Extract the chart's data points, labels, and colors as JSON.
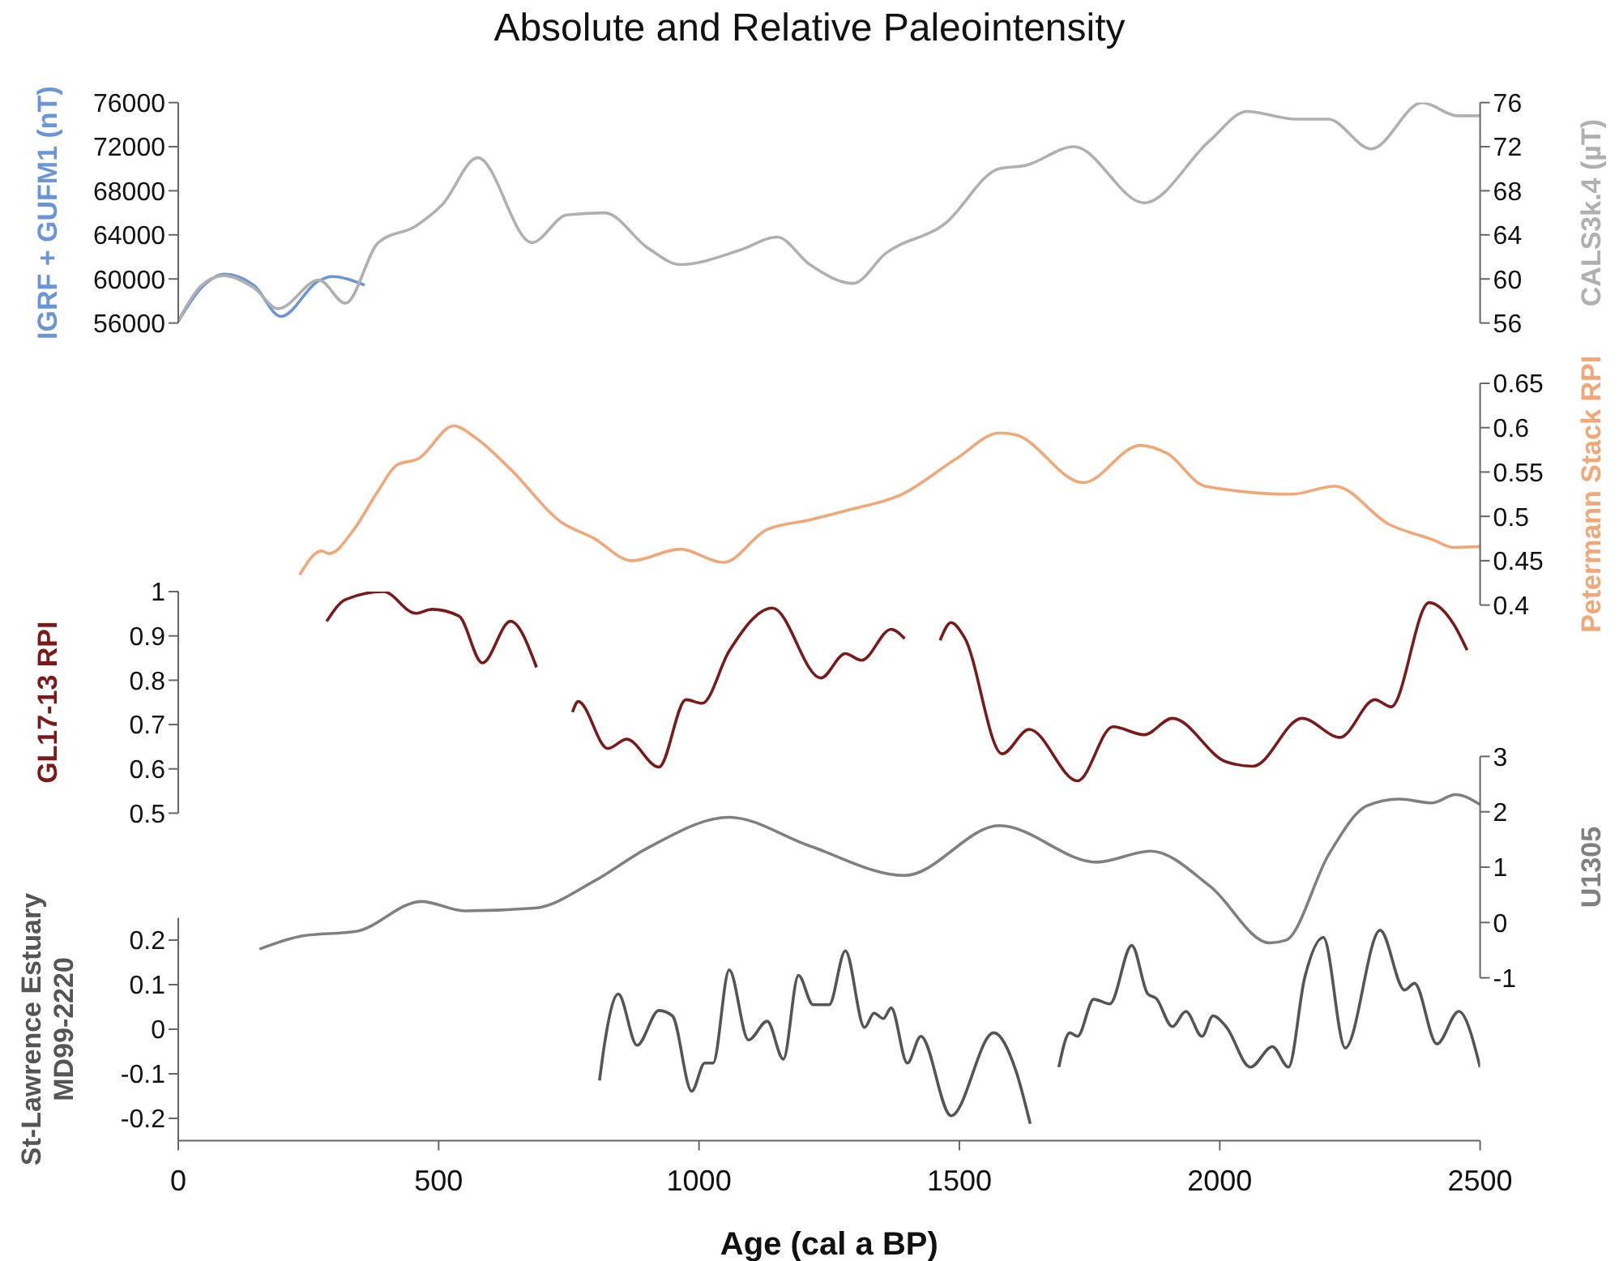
{
  "chart_data": [
    {
      "type": "line",
      "title": "Absolute and Relative Paleointensity",
      "ylabel": "IGRF + GUFM1 (nT)",
      "y2label": "CALS3k.4 (µT)",
      "xlim": [
        0,
        2500
      ],
      "ylim": [
        56000,
        76000
      ],
      "yticks": [
        56000,
        60000,
        64000,
        68000,
        72000,
        76000
      ],
      "y2lim": [
        56,
        76
      ],
      "y2ticks": [
        56,
        60,
        64,
        68,
        72,
        76
      ],
      "tick_labels": "y",
      "series": [
        {
          "color": "#6a96d8",
          "x": [
            0,
            47,
            88,
            145,
            197,
            270,
            295,
            358
          ],
          "values": [
            56150,
            59330,
            60430,
            59430,
            56600,
            59840,
            60220,
            59430
          ]
        },
        {
          "color": "#b0b0b0",
          "axis": "y2",
          "x": [
            0,
            47,
            88,
            145,
            192,
            270,
            321,
            384,
            456,
            508,
            575,
            679,
            746,
            819,
            902,
            964,
            1078,
            1150,
            1213,
            1296,
            1358,
            1472,
            1576,
            1627,
            1720,
            1855,
            1980,
            2052,
            2146,
            2208,
            2291,
            2389,
            2456,
            2500
          ],
          "values": [
            56.2,
            59.5,
            60.3,
            59.2,
            57.3,
            59.9,
            57.8,
            63.3,
            64.8,
            66.8,
            71.0,
            63.3,
            65.8,
            66.0,
            62.8,
            61.3,
            62.6,
            63.8,
            61.3,
            59.6,
            62.3,
            65.0,
            70.0,
            70.3,
            72.0,
            66.9,
            72.5,
            75.2,
            74.5,
            74.5,
            71.8,
            76.0,
            74.8,
            74.8
          ]
        }
      ]
    },
    {
      "type": "line",
      "y2label": "Petermann Stack RPI",
      "xlim": [
        0,
        2500
      ],
      "y2lim": [
        0.4,
        0.65
      ],
      "y2ticks": [
        0.4,
        0.45,
        0.5,
        0.55,
        0.6,
        0.65
      ],
      "tick_labels": "y",
      "series": [
        {
          "color": "#f0a878",
          "axis": "y2",
          "x": [
            233,
            275,
            290,
            337,
            383,
            420,
            461,
            529,
            570,
            640,
            734,
            796,
            871,
            964,
            1047,
            1130,
            1213,
            1286,
            1390,
            1494,
            1577,
            1608,
            1738,
            1847,
            1899,
            1972,
            2138,
            2221,
            2325,
            2408,
            2449,
            2500
          ],
          "values": [
            0.434,
            0.461,
            0.458,
            0.485,
            0.528,
            0.558,
            0.565,
            0.602,
            0.589,
            0.552,
            0.494,
            0.476,
            0.45,
            0.463,
            0.448,
            0.485,
            0.496,
            0.507,
            0.525,
            0.565,
            0.594,
            0.592,
            0.538,
            0.58,
            0.571,
            0.534,
            0.525,
            0.534,
            0.491,
            0.474,
            0.465,
            0.466
          ]
        }
      ]
    },
    {
      "type": "line",
      "ylabel": "GL17-13 RPI",
      "xlim": [
        0,
        2500
      ],
      "ylim": [
        0.5,
        1
      ],
      "yticks": [
        0.5,
        0.6,
        0.7,
        0.8,
        0.9,
        1
      ],
      "tick_labels": "y",
      "series": [
        {
          "color": "#7a1a1a",
          "x": [
            285,
            321,
            394,
            456,
            487,
            539,
            584,
            638,
            688,
            720,
            757,
            768,
            825,
            861,
            923,
            975,
            1006,
            1058,
            1141,
            1234,
            1281,
            1312,
            1369,
            1395,
            1430,
            1463,
            1484,
            1510,
            1582,
            1634,
            1727,
            1795,
            1855,
            1909,
            2012,
            2064,
            2158,
            2231,
            2298,
            2329,
            2402,
            2449,
            2475
          ],
          "values": [
            0.933,
            0.982,
            1.0,
            0.951,
            0.96,
            0.945,
            0.839,
            0.933,
            0.829,
            null,
            0.728,
            0.752,
            0.646,
            0.667,
            0.604,
            0.756,
            0.748,
            0.866,
            0.963,
            0.805,
            0.86,
            0.845,
            0.915,
            0.894,
            null,
            0.89,
            0.93,
            0.896,
            0.634,
            0.689,
            0.573,
            0.695,
            0.677,
            0.714,
            0.616,
            0.606,
            0.714,
            0.671,
            0.756,
            0.74,
            0.975,
            0.927,
            0.868
          ]
        }
      ]
    },
    {
      "type": "line",
      "y2label": "U1305",
      "xlim": [
        0,
        2500
      ],
      "y2lim": [
        -1,
        3
      ],
      "y2ticks": [
        -1,
        0,
        1,
        2,
        3
      ],
      "tick_labels": "y",
      "series": [
        {
          "color": "#808080",
          "axis": "y2",
          "x": [
            156,
            239,
            342,
            467,
            550,
            685,
            799,
            902,
            1058,
            1213,
            1395,
            1577,
            1764,
            1867,
            1982,
            2096,
            2127,
            2210,
            2283,
            2345,
            2407,
            2453,
            2500
          ],
          "values": [
            -0.48,
            -0.24,
            -0.16,
            0.38,
            0.21,
            0.26,
            0.75,
            1.35,
            1.9,
            1.38,
            0.85,
            1.75,
            1.09,
            1.29,
            0.65,
            -0.37,
            -0.32,
            1.24,
            2.11,
            2.23,
            2.16,
            2.31,
            2.13
          ]
        }
      ]
    },
    {
      "type": "line",
      "ylabel": "St-Lawrence Estuary\nMD99-2220",
      "xlabel": "Age (cal a BP)",
      "xlim": [
        0,
        2500
      ],
      "xticks": [
        0,
        500,
        1000,
        1500,
        2000,
        2500
      ],
      "ylim": [
        -0.25,
        0.25
      ],
      "yticks": [
        -0.2,
        -0.1,
        0,
        0.1,
        0.2
      ],
      "series": [
        {
          "color": "#555555",
          "x": [
            809,
            819,
            845,
            881,
            923,
            949,
            986,
            1011,
            1027,
            1058,
            1095,
            1131,
            1162,
            1191,
            1219,
            1250,
            1281,
            1318,
            1336,
            1354,
            1369,
            1400,
            1426,
            1484,
            1566,
            1608,
            1636,
            1665,
            1691,
            1712,
            1727,
            1758,
            1789,
            1831,
            1862,
            1878,
            1909,
            1935,
            1966,
            1987,
            2012,
            2059,
            2101,
            2132,
            2163,
            2199,
            2241,
            2308,
            2355,
            2374,
            2417,
            2459,
            2500
          ],
          "values": [
            -0.115,
            -0.03,
            0.079,
            -0.036,
            0.042,
            0.03,
            -0.139,
            -0.076,
            -0.076,
            0.133,
            -0.024,
            0.018,
            -0.067,
            0.121,
            0.055,
            0.055,
            0.176,
            0.004,
            0.036,
            0.024,
            0.048,
            -0.076,
            -0.016,
            -0.194,
            -0.008,
            -0.091,
            -0.212,
            null,
            -0.085,
            -0.008,
            -0.016,
            0.067,
            0.057,
            0.188,
            0.079,
            0.069,
            0.006,
            0.04,
            -0.016,
            0.03,
            0.006,
            -0.085,
            -0.039,
            -0.085,
            0.115,
            0.206,
            -0.042,
            0.222,
            0.088,
            0.103,
            -0.033,
            0.04,
            -0.085
          ]
        }
      ]
    }
  ]
}
